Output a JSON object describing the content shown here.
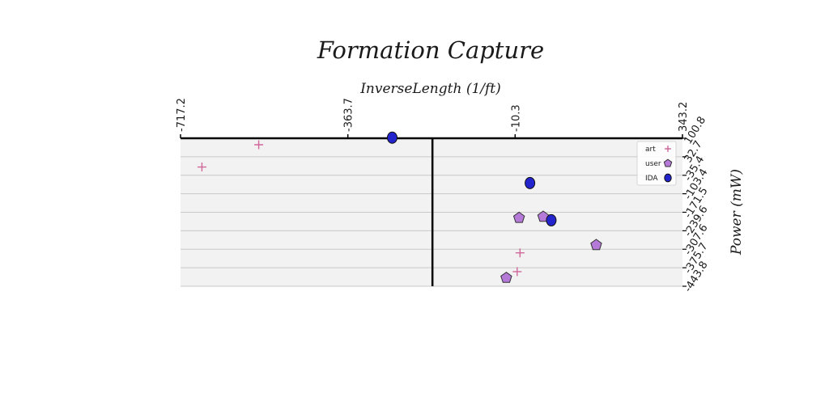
{
  "chart_data": {
    "type": "scatter",
    "title": "Formation Capture",
    "xlabel": "InverseLength (1/ft)",
    "ylabel": "Power (mW)",
    "xlim": [
      -717.2,
      343.2
    ],
    "ylim": [
      -443.8,
      100.8
    ],
    "y_inverted": true,
    "x_axis_position": "top",
    "y_axis_position": "right",
    "x_ticks": [
      -717.2,
      -363.7,
      -10.3,
      343.2
    ],
    "x_tick_labels": [
      "-717.2",
      "-363.7",
      "-10.3",
      "343.2"
    ],
    "y_ticks": [
      100.8,
      32.7,
      -35.4,
      -103.4,
      -171.5,
      -239.6,
      -307.6,
      -375.7,
      -443.8
    ],
    "y_tick_labels": [
      "100.8",
      "32.7",
      "-35.4",
      "-103.4",
      "-171.5",
      "-239.6",
      "-307.6",
      "-375.7",
      "-443.8"
    ],
    "grid": "horizontal",
    "reference_line_x": -185,
    "legend_position": "top-right",
    "colors": {
      "art": "#d0679a",
      "user": "#b57ad8",
      "IDA": "#2424cc",
      "plot_bg": "#f2f2f2"
    },
    "series": [
      {
        "name": "art",
        "marker": "plus",
        "points": [
          [
            -552,
            77
          ],
          [
            -672,
            -5
          ],
          [
            -6,
            -390
          ],
          [
            0,
            -321
          ]
        ]
      },
      {
        "name": "user",
        "marker": "pentagon",
        "points": [
          [
            -29,
            -413
          ],
          [
            -2,
            -192
          ],
          [
            49,
            -188
          ],
          [
            161,
            -292
          ]
        ]
      },
      {
        "name": "IDA",
        "marker": "circle",
        "points": [
          [
            -270,
            103
          ],
          [
            66,
            -201
          ],
          [
            21,
            -64
          ]
        ]
      }
    ]
  }
}
